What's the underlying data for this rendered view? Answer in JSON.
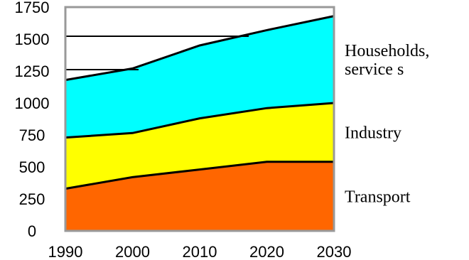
{
  "chart_data": {
    "type": "area",
    "stacked": true,
    "title": "",
    "xlabel": "",
    "ylabel": "",
    "x": [
      1990,
      2000,
      2010,
      2020,
      2030
    ],
    "ylim": [
      0,
      1750
    ],
    "yticks": [
      "0",
      "250",
      "500",
      "750",
      "1000",
      "1250",
      "1500",
      "1750"
    ],
    "xticks": [
      "1990",
      "2000",
      "2010",
      "2020",
      "2030"
    ],
    "grid": false,
    "series": [
      {
        "name": "Transport",
        "label_lines": [
          "Transport"
        ],
        "values": [
          330,
          420,
          480,
          540,
          540
        ],
        "color": "#ff6600"
      },
      {
        "name": "Industry",
        "label_lines": [
          "Industry"
        ],
        "values": [
          400,
          345,
          400,
          420,
          460
        ],
        "color": "#ffff00"
      },
      {
        "name": "Households, services",
        "label_lines": [
          "Households,",
          "service s"
        ],
        "values": [
          450,
          505,
          570,
          610,
          680
        ],
        "color": "#00ffff"
      }
    ],
    "frame_color": "#999999"
  }
}
